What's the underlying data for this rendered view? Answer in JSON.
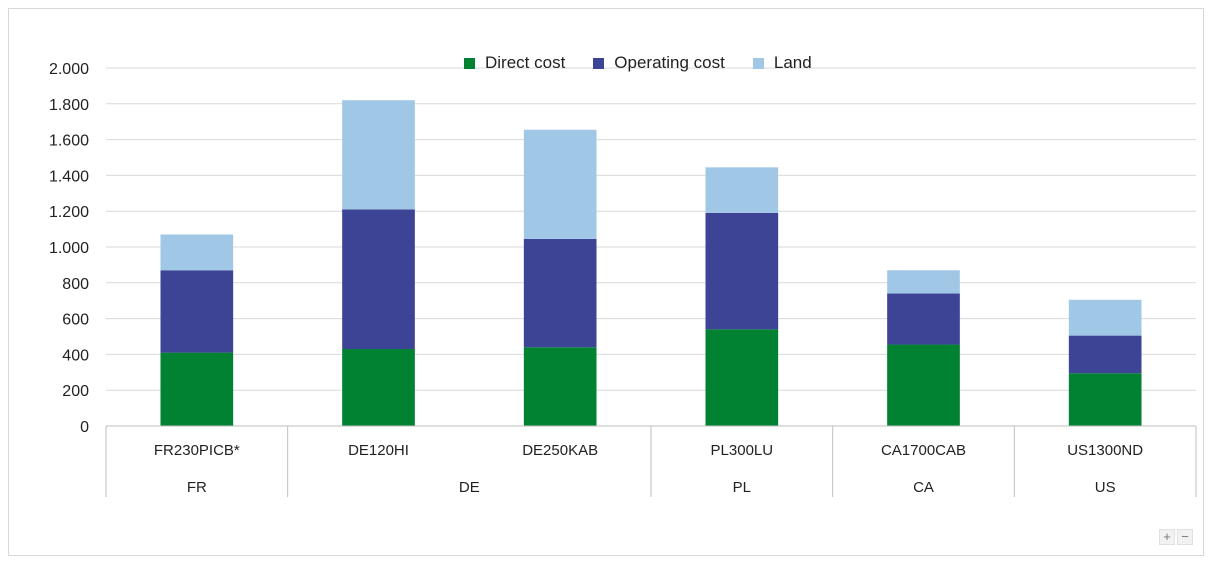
{
  "chart_data": {
    "type": "bar",
    "stacked": true,
    "title": "",
    "xlabel": "",
    "ylabel": "",
    "ylim": [
      0,
      2000
    ],
    "yticks": [
      0,
      200,
      400,
      600,
      800,
      1000,
      1200,
      1400,
      1600,
      1800,
      2000
    ],
    "ytick_labels": [
      "0",
      "200",
      "400",
      "600",
      "800",
      "1.000",
      "1.200",
      "1.400",
      "1.600",
      "1.800",
      "2.000"
    ],
    "grid": true,
    "legend_position": "top-center",
    "categories": [
      "FR230PICB*",
      "DE120HI",
      "DE250KAB",
      "PL300LU",
      "CA1700CAB",
      "US1300ND"
    ],
    "groups": [
      {
        "label": "FR",
        "span": 1
      },
      {
        "label": "DE",
        "span": 2
      },
      {
        "label": "PL",
        "span": 1
      },
      {
        "label": "CA",
        "span": 1
      },
      {
        "label": "US",
        "span": 1
      }
    ],
    "series": [
      {
        "name": "Direct cost",
        "color": "#008232",
        "values": [
          410,
          430,
          440,
          540,
          455,
          295
        ]
      },
      {
        "name": "Operating cost",
        "color": "#3d4495",
        "values": [
          460,
          780,
          605,
          650,
          285,
          210
        ]
      },
      {
        "name": "Land",
        "color": "#a1c7e7",
        "values": [
          200,
          610,
          610,
          255,
          130,
          200
        ]
      }
    ]
  },
  "controls": {
    "zoom_in": "+",
    "zoom_out": "−"
  }
}
